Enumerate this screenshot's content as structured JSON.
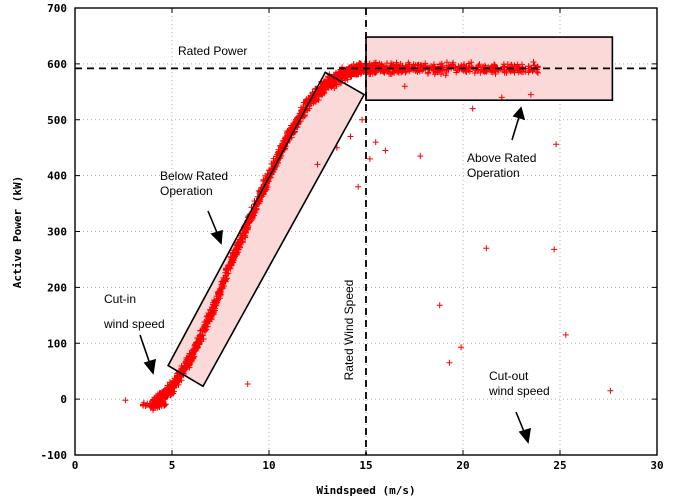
{
  "chart_data": {
    "type": "scatter",
    "xlabel": "Windspeed (m/s)",
    "ylabel": "Active Power (kW)",
    "xlim": [
      0,
      30
    ],
    "ylim": [
      -100,
      700
    ],
    "x_ticks": [
      0,
      5,
      10,
      15,
      20,
      25,
      30
    ],
    "y_ticks": [
      -100,
      0,
      100,
      200,
      300,
      400,
      500,
      600,
      700
    ],
    "grid": true,
    "marker": "+",
    "marker_color": "#ff0000",
    "rated_power": 592,
    "rated_wind_speed": 15,
    "curve": {
      "cut_in": 4.0,
      "points": [
        [
          4.0,
          -10
        ],
        [
          5,
          20
        ],
        [
          6,
          75
        ],
        [
          7,
          150
        ],
        [
          8,
          240
        ],
        [
          9,
          320
        ],
        [
          10,
          400
        ],
        [
          11,
          470
        ],
        [
          12,
          530
        ],
        [
          13,
          565
        ],
        [
          14,
          585
        ],
        [
          15,
          592
        ]
      ],
      "spread_kw": 18,
      "above_rated_range": [
        15,
        24
      ],
      "point_count": 1400
    },
    "outliers": [
      [
        2.6,
        -2
      ],
      [
        8.9,
        27
      ],
      [
        12.5,
        420
      ],
      [
        13.5,
        450
      ],
      [
        14.2,
        470
      ],
      [
        14.6,
        380
      ],
      [
        14.8,
        500
      ],
      [
        15.2,
        430
      ],
      [
        15.5,
        460
      ],
      [
        16.0,
        445
      ],
      [
        17.8,
        435
      ],
      [
        18.8,
        168
      ],
      [
        19.3,
        65
      ],
      [
        19.9,
        93
      ],
      [
        21.2,
        270
      ],
      [
        24.7,
        268
      ],
      [
        24.8,
        456
      ],
      [
        25.3,
        115
      ],
      [
        27.6,
        15
      ],
      [
        22.0,
        540
      ],
      [
        23.5,
        545
      ],
      [
        20.5,
        520
      ],
      [
        17.0,
        560
      ]
    ],
    "annotations": {
      "rated_power": "Rated Power",
      "below_rated_1": "Below Rated",
      "below_rated_2": "Operation",
      "above_rated_1": "Above Rated",
      "above_rated_2": "Operation",
      "cut_in_1": "Cut-in",
      "cut_in_2": "wind speed",
      "rated_wind_speed": "Rated Wind Speed",
      "cut_out_1": "Cut-out",
      "cut_out_2": "wind speed"
    },
    "regions": {
      "below_rated": {
        "label": "Below Rated Operation",
        "fill": "#fbd9d9"
      },
      "above_rated": {
        "label": "Above Rated Operation",
        "fill": "#fbd9d9",
        "x": [
          15,
          27.7
        ],
        "y": [
          535,
          648
        ]
      }
    }
  }
}
